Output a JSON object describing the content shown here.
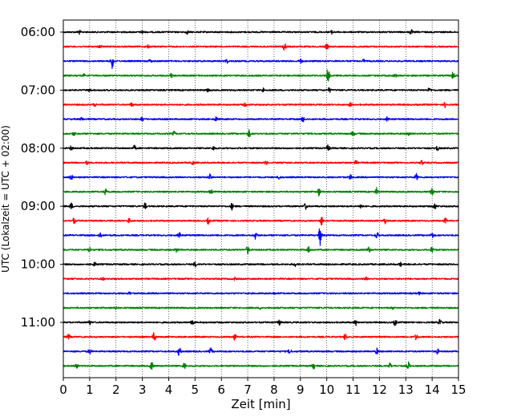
{
  "chart_data": {
    "type": "line",
    "title": "",
    "xlabel": "Zeit  [min]",
    "ylabel": "UTC (Lokalzeit = UTC + 02:00)",
    "xlim": [
      0,
      15
    ],
    "x_ticks": [
      0,
      1,
      2,
      3,
      4,
      5,
      6,
      7,
      8,
      9,
      10,
      11,
      12,
      13,
      14,
      15
    ],
    "x_tick_labels": [
      "0",
      "1",
      "2",
      "3",
      "4",
      "5",
      "6",
      "7",
      "8",
      "9",
      "10",
      "11",
      "12",
      "13",
      "14",
      "15"
    ],
    "y_tick_labels": [
      "06:00",
      "07:00",
      "08:00",
      "09:00",
      "10:00",
      "11:00"
    ],
    "grid": "vertical-dotted",
    "trace_colors": [
      "#000000",
      "#ff0000",
      "#0000ff",
      "#008000"
    ],
    "traces": [
      {
        "start": "06:00",
        "color": "#000000",
        "events": [
          {
            "x": 0.6,
            "amp": 2.5
          },
          {
            "x": 3.0,
            "amp": 2.0
          },
          {
            "x": 4.7,
            "amp": 2.0
          },
          {
            "x": 10.2,
            "amp": 2.0
          },
          {
            "x": 13.2,
            "amp": 3.0
          }
        ]
      },
      {
        "start": "06:15",
        "color": "#ff0000",
        "events": [
          {
            "x": 1.4,
            "amp": 2.0
          },
          {
            "x": 3.2,
            "amp": 2.5
          },
          {
            "x": 8.4,
            "amp": 5.0
          },
          {
            "x": 10.0,
            "amp": 3.0
          }
        ]
      },
      {
        "start": "06:30",
        "color": "#0000ff",
        "events": [
          {
            "x": 1.85,
            "amp": 9.0
          },
          {
            "x": 3.3,
            "amp": 2.0
          },
          {
            "x": 6.2,
            "amp": 2.5
          },
          {
            "x": 9.0,
            "amp": 3.0
          },
          {
            "x": 11.4,
            "amp": 2.0
          }
        ]
      },
      {
        "start": "06:45",
        "color": "#008000",
        "events": [
          {
            "x": 0.8,
            "amp": 2.0
          },
          {
            "x": 4.1,
            "amp": 2.5
          },
          {
            "x": 10.05,
            "amp": 10.0
          },
          {
            "x": 12.6,
            "amp": 2.0
          },
          {
            "x": 14.8,
            "amp": 5.0
          }
        ]
      },
      {
        "start": "07:00",
        "color": "#000000",
        "events": [
          {
            "x": 1.0,
            "amp": 2.0
          },
          {
            "x": 5.5,
            "amp": 2.0
          },
          {
            "x": 7.6,
            "amp": 2.5
          },
          {
            "x": 10.1,
            "amp": 3.0
          },
          {
            "x": 13.9,
            "amp": 3.0
          }
        ]
      },
      {
        "start": "07:15",
        "color": "#ff0000",
        "events": [
          {
            "x": 1.2,
            "amp": 2.0
          },
          {
            "x": 2.6,
            "amp": 2.5
          },
          {
            "x": 6.9,
            "amp": 2.0
          },
          {
            "x": 10.9,
            "amp": 2.5
          },
          {
            "x": 14.5,
            "amp": 3.5
          }
        ]
      },
      {
        "start": "07:30",
        "color": "#0000ff",
        "events": [
          {
            "x": 0.7,
            "amp": 2.0
          },
          {
            "x": 3.0,
            "amp": 3.0
          },
          {
            "x": 5.8,
            "amp": 2.5
          },
          {
            "x": 9.1,
            "amp": 3.5
          },
          {
            "x": 12.3,
            "amp": 2.5
          }
        ]
      },
      {
        "start": "07:45",
        "color": "#008000",
        "events": [
          {
            "x": 0.4,
            "amp": 2.0
          },
          {
            "x": 4.2,
            "amp": 2.5
          },
          {
            "x": 7.05,
            "amp": 4.5
          },
          {
            "x": 11.0,
            "amp": 3.0
          },
          {
            "x": 13.1,
            "amp": 2.5
          }
        ]
      },
      {
        "start": "08:00",
        "color": "#000000",
        "events": [
          {
            "x": 0.3,
            "amp": 2.5
          },
          {
            "x": 2.7,
            "amp": 3.0
          },
          {
            "x": 5.7,
            "amp": 2.5
          },
          {
            "x": 10.05,
            "amp": 4.5
          },
          {
            "x": 14.2,
            "amp": 3.0
          }
        ]
      },
      {
        "start": "08:15",
        "color": "#ff0000",
        "events": [
          {
            "x": 0.9,
            "amp": 2.0
          },
          {
            "x": 4.9,
            "amp": 3.0
          },
          {
            "x": 7.7,
            "amp": 2.5
          },
          {
            "x": 11.1,
            "amp": 2.5
          },
          {
            "x": 13.6,
            "amp": 3.0
          }
        ]
      },
      {
        "start": "08:30",
        "color": "#0000ff",
        "events": [
          {
            "x": 0.3,
            "amp": 3.0
          },
          {
            "x": 5.55,
            "amp": 4.0
          },
          {
            "x": 8.2,
            "amp": 2.5
          },
          {
            "x": 10.9,
            "amp": 3.0
          },
          {
            "x": 13.4,
            "amp": 4.0
          }
        ]
      },
      {
        "start": "08:45",
        "color": "#008000",
        "events": [
          {
            "x": 1.6,
            "amp": 3.5
          },
          {
            "x": 5.6,
            "amp": 3.0
          },
          {
            "x": 9.7,
            "amp": 5.0
          },
          {
            "x": 11.9,
            "amp": 4.5
          },
          {
            "x": 14.0,
            "amp": 4.0
          }
        ]
      },
      {
        "start": "09:00",
        "color": "#000000",
        "events": [
          {
            "x": 0.3,
            "amp": 4.0
          },
          {
            "x": 3.1,
            "amp": 4.0
          },
          {
            "x": 6.4,
            "amp": 4.0
          },
          {
            "x": 9.2,
            "amp": 4.0
          },
          {
            "x": 11.3,
            "amp": 3.5
          },
          {
            "x": 14.1,
            "amp": 4.0
          }
        ]
      },
      {
        "start": "09:15",
        "color": "#ff0000",
        "events": [
          {
            "x": 0.4,
            "amp": 3.5
          },
          {
            "x": 2.5,
            "amp": 3.0
          },
          {
            "x": 5.5,
            "amp": 3.5
          },
          {
            "x": 9.8,
            "amp": 5.5
          },
          {
            "x": 12.2,
            "amp": 3.5
          },
          {
            "x": 14.5,
            "amp": 3.0
          }
        ]
      },
      {
        "start": "09:30",
        "color": "#0000ff",
        "events": [
          {
            "x": 1.4,
            "amp": 4.0
          },
          {
            "x": 4.4,
            "amp": 3.5
          },
          {
            "x": 7.3,
            "amp": 4.5
          },
          {
            "x": 9.75,
            "amp": 12.0
          },
          {
            "x": 11.9,
            "amp": 4.0
          },
          {
            "x": 14.0,
            "amp": 3.5
          }
        ]
      },
      {
        "start": "09:45",
        "color": "#008000",
        "events": [
          {
            "x": 1.0,
            "amp": 3.5
          },
          {
            "x": 4.3,
            "amp": 3.0
          },
          {
            "x": 7.0,
            "amp": 5.0
          },
          {
            "x": 9.3,
            "amp": 4.0
          },
          {
            "x": 11.6,
            "amp": 3.5
          },
          {
            "x": 14.0,
            "amp": 3.5
          }
        ]
      },
      {
        "start": "10:00",
        "color": "#000000",
        "events": [
          {
            "x": 1.2,
            "amp": 2.5
          },
          {
            "x": 5.0,
            "amp": 2.5
          },
          {
            "x": 8.8,
            "amp": 2.0
          },
          {
            "x": 12.8,
            "amp": 2.5
          }
        ]
      },
      {
        "start": "10:15",
        "color": "#ff0000",
        "events": [
          {
            "x": 1.5,
            "amp": 1.5
          },
          {
            "x": 6.5,
            "amp": 1.5
          },
          {
            "x": 11.5,
            "amp": 1.5
          }
        ]
      },
      {
        "start": "10:30",
        "color": "#0000ff",
        "events": [
          {
            "x": 2.5,
            "amp": 1.5
          },
          {
            "x": 8.0,
            "amp": 1.5
          },
          {
            "x": 13.5,
            "amp": 1.5
          }
        ]
      },
      {
        "start": "10:45",
        "color": "#008000",
        "events": [
          {
            "x": 2.0,
            "amp": 1.5
          },
          {
            "x": 7.5,
            "amp": 1.5
          },
          {
            "x": 12.5,
            "amp": 1.5
          }
        ]
      },
      {
        "start": "11:00",
        "color": "#000000",
        "events": [
          {
            "x": 1.0,
            "amp": 2.5
          },
          {
            "x": 4.9,
            "amp": 4.0
          },
          {
            "x": 8.2,
            "amp": 3.0
          },
          {
            "x": 11.1,
            "amp": 3.5
          },
          {
            "x": 12.6,
            "amp": 4.0
          },
          {
            "x": 14.3,
            "amp": 3.5
          }
        ]
      },
      {
        "start": "11:15",
        "color": "#ff0000",
        "events": [
          {
            "x": 0.2,
            "amp": 3.0
          },
          {
            "x": 3.45,
            "amp": 6.0
          },
          {
            "x": 6.5,
            "amp": 3.5
          },
          {
            "x": 10.7,
            "amp": 4.0
          },
          {
            "x": 13.4,
            "amp": 3.5
          }
        ]
      },
      {
        "start": "11:30",
        "color": "#0000ff",
        "events": [
          {
            "x": 1.0,
            "amp": 3.5
          },
          {
            "x": 4.4,
            "amp": 5.5
          },
          {
            "x": 5.6,
            "amp": 4.0
          },
          {
            "x": 8.6,
            "amp": 3.5
          },
          {
            "x": 11.9,
            "amp": 3.5
          },
          {
            "x": 14.2,
            "amp": 3.0
          }
        ]
      },
      {
        "start": "11:45",
        "color": "#008000",
        "events": [
          {
            "x": 0.5,
            "amp": 3.0
          },
          {
            "x": 3.35,
            "amp": 5.0
          },
          {
            "x": 4.6,
            "amp": 4.5
          },
          {
            "x": 9.5,
            "amp": 3.5
          },
          {
            "x": 12.4,
            "amp": 3.5
          },
          {
            "x": 13.1,
            "amp": 4.5
          }
        ]
      }
    ]
  }
}
